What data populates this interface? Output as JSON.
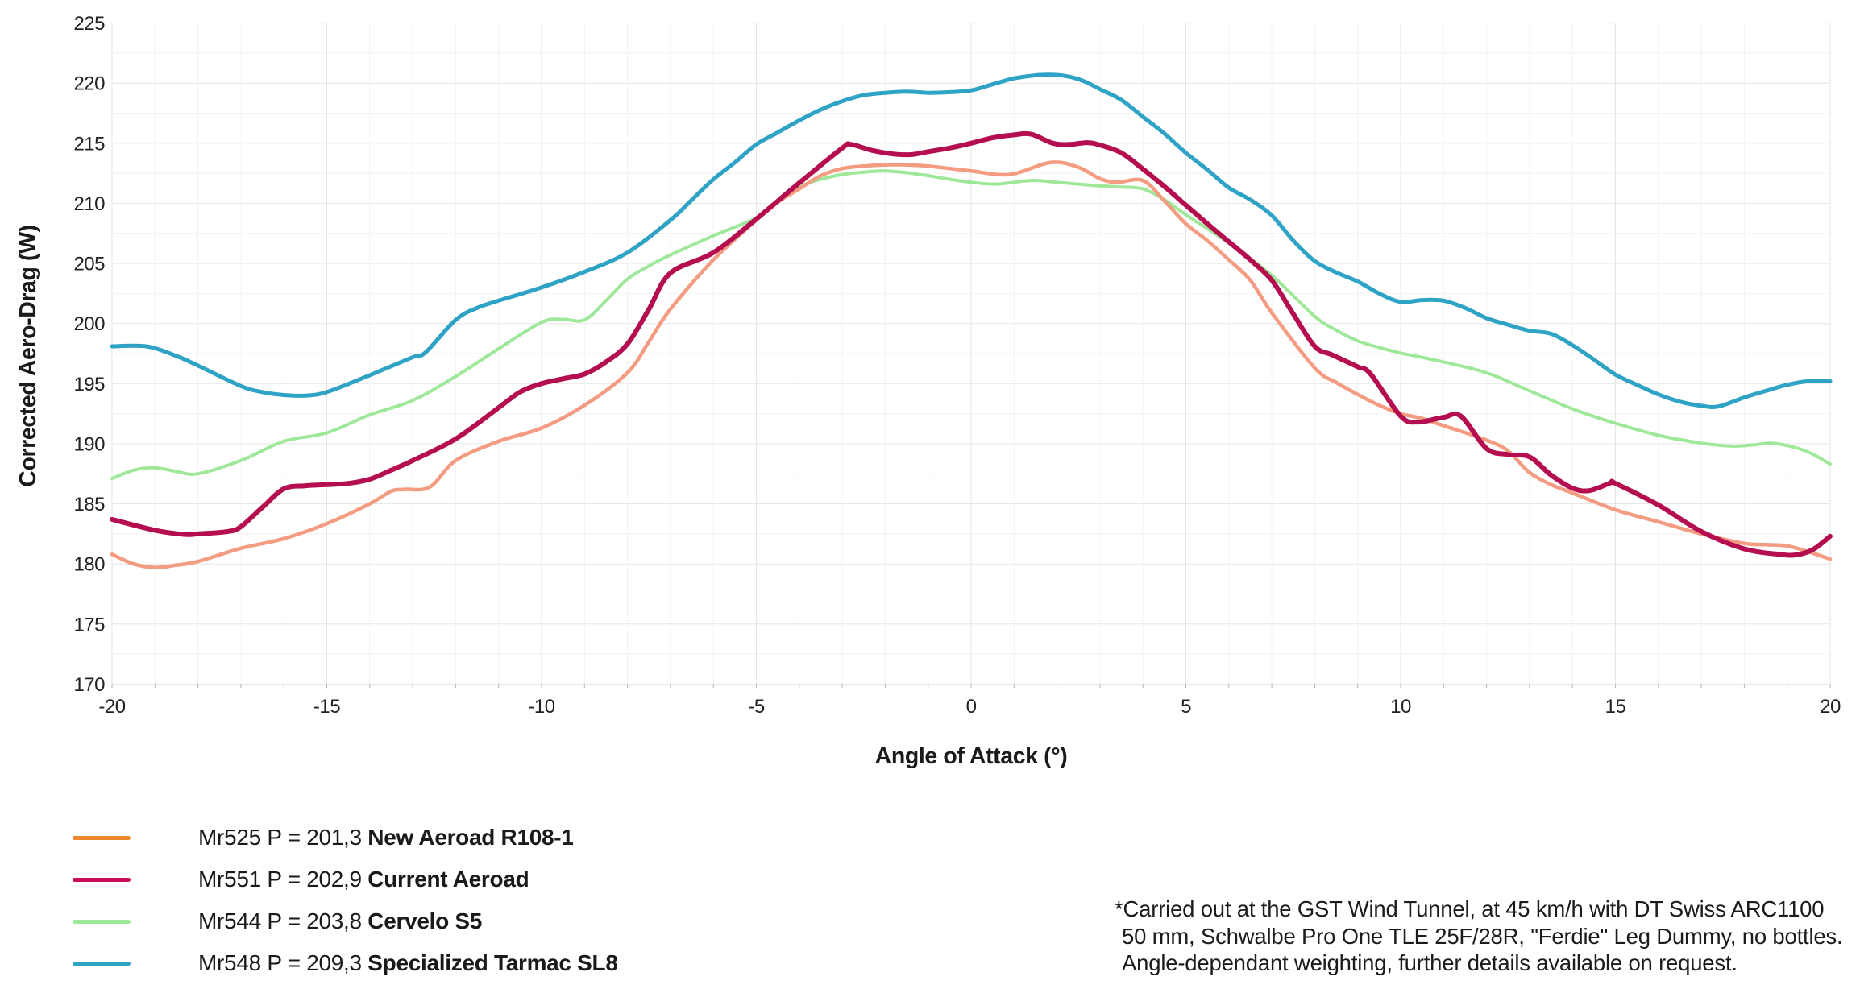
{
  "chart_data": {
    "type": "line",
    "title": "",
    "xlabel": "Angle of Attack (°)",
    "ylabel": "Corrected Aero-Drag (W)",
    "xlim": [
      -20,
      20
    ],
    "ylim": [
      170,
      225
    ],
    "x_ticks": [
      -20,
      -15,
      -10,
      -5,
      0,
      5,
      10,
      15,
      20
    ],
    "y_ticks": [
      170,
      175,
      180,
      185,
      190,
      195,
      200,
      205,
      210,
      215,
      220,
      225
    ],
    "x_minor_step": 1,
    "y_minor_step": 2.5,
    "grid": true,
    "legend_position": "bottom-left",
    "series": [
      {
        "name": "Mr525 New Aeroad R108-1",
        "code": "Mr525",
        "p_value": "201,3",
        "bike": "New Aeroad R108-1",
        "color": "#F49C82",
        "width": 4.5,
        "points": [
          [
            -20,
            180.8
          ],
          [
            -19.5,
            180
          ],
          [
            -19,
            179.7
          ],
          [
            -18.5,
            179.9
          ],
          [
            -18,
            180.2
          ],
          [
            -17,
            181.3
          ],
          [
            -16,
            182.1
          ],
          [
            -15,
            183.35
          ],
          [
            -14,
            185
          ],
          [
            -13.5,
            186.05
          ],
          [
            -13.2,
            186.2
          ],
          [
            -12.6,
            186.4
          ],
          [
            -12,
            188.6
          ],
          [
            -11,
            190.2
          ],
          [
            -10,
            191.3
          ],
          [
            -9,
            193.2
          ],
          [
            -8,
            195.9
          ],
          [
            -7.5,
            198.5
          ],
          [
            -7,
            201.2
          ],
          [
            -6,
            205.3
          ],
          [
            -5,
            208.6
          ],
          [
            -4.5,
            210.1
          ],
          [
            -4,
            211.2
          ],
          [
            -3.5,
            212.3
          ],
          [
            -3,
            212.9
          ],
          [
            -2.5,
            213.1
          ],
          [
            -2,
            213.2
          ],
          [
            -1.5,
            213.2
          ],
          [
            -1,
            213.1
          ],
          [
            -0.5,
            212.9
          ],
          [
            0,
            212.7
          ],
          [
            0.9,
            212.4
          ],
          [
            1.85,
            213.4
          ],
          [
            2.5,
            213
          ],
          [
            3,
            212.05
          ],
          [
            3.4,
            211.75
          ],
          [
            4,
            211.9
          ],
          [
            4.5,
            210.2
          ],
          [
            5,
            208.3
          ],
          [
            5.5,
            206.9
          ],
          [
            6,
            205.3
          ],
          [
            6.5,
            203.6
          ],
          [
            7,
            200.9
          ],
          [
            8,
            196.3
          ],
          [
            8.5,
            195.1
          ],
          [
            9,
            194.1
          ],
          [
            9.5,
            193.2
          ],
          [
            10,
            192.5
          ],
          [
            10.5,
            192.1
          ],
          [
            11,
            191.5
          ],
          [
            12,
            190.3
          ],
          [
            12.5,
            189.4
          ],
          [
            13,
            187.6
          ],
          [
            13.5,
            186.6
          ],
          [
            14,
            185.9
          ],
          [
            15,
            184.5
          ],
          [
            16,
            183.5
          ],
          [
            17,
            182.5
          ],
          [
            18,
            181.7
          ],
          [
            18.5,
            181.6
          ],
          [
            19,
            181.5
          ],
          [
            19.5,
            181
          ],
          [
            20,
            180.4
          ]
        ]
      },
      {
        "name": "Mr551 Current Aeroad",
        "code": "Mr551",
        "p_value": "202,9",
        "bike": "Current Aeroad",
        "color": "#B50E50",
        "width": 6,
        "points": [
          [
            -20,
            183.7
          ],
          [
            -19,
            182.8
          ],
          [
            -18.3,
            182.45
          ],
          [
            -18,
            182.5
          ],
          [
            -17.3,
            182.7
          ],
          [
            -17,
            183.1
          ],
          [
            -16.5,
            184.7
          ],
          [
            -16,
            186.25
          ],
          [
            -15.5,
            186.5
          ],
          [
            -15,
            186.6
          ],
          [
            -14.5,
            186.7
          ],
          [
            -14,
            187.05
          ],
          [
            -13.5,
            187.8
          ],
          [
            -13,
            188.6
          ],
          [
            -12,
            190.4
          ],
          [
            -11,
            193
          ],
          [
            -10.5,
            194.3
          ],
          [
            -10,
            195
          ],
          [
            -9.5,
            195.4
          ],
          [
            -9,
            195.8
          ],
          [
            -8.5,
            196.8
          ],
          [
            -8,
            198.3
          ],
          [
            -7.5,
            201.2
          ],
          [
            -7,
            204.2
          ],
          [
            -6,
            205.9
          ],
          [
            -5,
            208.7
          ],
          [
            -4,
            211.7
          ],
          [
            -3,
            214.6
          ],
          [
            -2.8,
            214.9
          ],
          [
            -2.3,
            214.4
          ],
          [
            -1.8,
            214.1
          ],
          [
            -1.4,
            214.05
          ],
          [
            -1,
            214.3
          ],
          [
            -0.5,
            214.6
          ],
          [
            0,
            215
          ],
          [
            0.5,
            215.45
          ],
          [
            1,
            215.7
          ],
          [
            1.4,
            215.75
          ],
          [
            1.9,
            215
          ],
          [
            2.3,
            214.9
          ],
          [
            2.7,
            215.05
          ],
          [
            3,
            214.85
          ],
          [
            3.5,
            214.2
          ],
          [
            4,
            212.85
          ],
          [
            4.5,
            211.4
          ],
          [
            5,
            209.85
          ],
          [
            5.5,
            208.3
          ],
          [
            6,
            206.8
          ],
          [
            6.5,
            205.3
          ],
          [
            7,
            203.6
          ],
          [
            7.5,
            200.8
          ],
          [
            8,
            198.1
          ],
          [
            8.4,
            197.4
          ],
          [
            9,
            196.4
          ],
          [
            9.3,
            195.8
          ],
          [
            10,
            192.3
          ],
          [
            10.4,
            191.8
          ],
          [
            11,
            192.2
          ],
          [
            11.4,
            192.3
          ],
          [
            12,
            189.6
          ],
          [
            12.5,
            189.1
          ],
          [
            13,
            188.9
          ],
          [
            13.5,
            187.4
          ],
          [
            14,
            186.3
          ],
          [
            14.4,
            186.1
          ],
          [
            14.9,
            186.75
          ],
          [
            15,
            186.7
          ],
          [
            16,
            184.9
          ],
          [
            17,
            182.7
          ],
          [
            18,
            181.25
          ],
          [
            18.8,
            180.8
          ],
          [
            19.2,
            180.75
          ],
          [
            19.6,
            181.2
          ],
          [
            20,
            182.3
          ]
        ]
      },
      {
        "name": "Mr544 Cervelo S5",
        "code": "Mr544",
        "p_value": "203,8",
        "bike": "Cervelo S5",
        "color": "#9FE89A",
        "width": 4,
        "points": [
          [
            -20,
            187.1
          ],
          [
            -19.5,
            187.8
          ],
          [
            -19,
            188
          ],
          [
            -18.5,
            187.7
          ],
          [
            -18,
            187.5
          ],
          [
            -17,
            188.6
          ],
          [
            -16,
            190.2
          ],
          [
            -15,
            190.9
          ],
          [
            -14,
            192.4
          ],
          [
            -13,
            193.6
          ],
          [
            -12,
            195.6
          ],
          [
            -11,
            197.9
          ],
          [
            -10,
            200.1
          ],
          [
            -9.5,
            200.35
          ],
          [
            -9,
            200.3
          ],
          [
            -8.5,
            201.9
          ],
          [
            -8,
            203.7
          ],
          [
            -7.5,
            204.8
          ],
          [
            -7,
            205.7
          ],
          [
            -6,
            207.3
          ],
          [
            -5,
            208.8
          ],
          [
            -4.5,
            210.2
          ],
          [
            -4,
            211.4
          ],
          [
            -3.5,
            212
          ],
          [
            -3,
            212.4
          ],
          [
            -2.5,
            212.6
          ],
          [
            -2,
            212.7
          ],
          [
            -1.5,
            212.55
          ],
          [
            -1,
            212.3
          ],
          [
            -0.5,
            212
          ],
          [
            0,
            211.75
          ],
          [
            0.6,
            211.6
          ],
          [
            1.4,
            211.9
          ],
          [
            2,
            211.75
          ],
          [
            2.5,
            211.6
          ],
          [
            3,
            211.45
          ],
          [
            3.5,
            211.35
          ],
          [
            4,
            211.2
          ],
          [
            4.5,
            210.3
          ],
          [
            5,
            209.05
          ],
          [
            6,
            206.7
          ],
          [
            7,
            204
          ],
          [
            8,
            200.6
          ],
          [
            8.5,
            199.45
          ],
          [
            9,
            198.55
          ],
          [
            9.5,
            198
          ],
          [
            10,
            197.55
          ],
          [
            11,
            196.8
          ],
          [
            12,
            195.9
          ],
          [
            13,
            194.4
          ],
          [
            14,
            192.9
          ],
          [
            15,
            191.7
          ],
          [
            16,
            190.7
          ],
          [
            17,
            190.05
          ],
          [
            17.7,
            189.8
          ],
          [
            18.2,
            189.9
          ],
          [
            18.6,
            190.05
          ],
          [
            19,
            189.85
          ],
          [
            19.5,
            189.3
          ],
          [
            20,
            188.3
          ]
        ]
      },
      {
        "name": "Mr548 Specialized Tarmac SL8",
        "code": "Mr548",
        "p_value": "209,3",
        "bike": "Specialized Tarmac SL8",
        "color": "#2FA3C6",
        "width": 5,
        "points": [
          [
            -20,
            198.1
          ],
          [
            -19.2,
            198.1
          ],
          [
            -18.5,
            197.3
          ],
          [
            -18,
            196.5
          ],
          [
            -17,
            194.8
          ],
          [
            -16.5,
            194.3
          ],
          [
            -16,
            194.05
          ],
          [
            -15.5,
            194
          ],
          [
            -15,
            194.3
          ],
          [
            -14,
            195.7
          ],
          [
            -13,
            197.2
          ],
          [
            -12.7,
            197.6
          ],
          [
            -12,
            200.3
          ],
          [
            -11.5,
            201.3
          ],
          [
            -11,
            201.9
          ],
          [
            -10,
            203
          ],
          [
            -9,
            204.3
          ],
          [
            -8,
            205.9
          ],
          [
            -7,
            208.6
          ],
          [
            -6.5,
            210.3
          ],
          [
            -6,
            212
          ],
          [
            -5.5,
            213.4
          ],
          [
            -5,
            214.9
          ],
          [
            -4.5,
            215.9
          ],
          [
            -4,
            216.9
          ],
          [
            -3.5,
            217.8
          ],
          [
            -3,
            218.5
          ],
          [
            -2.5,
            219
          ],
          [
            -2,
            219.2
          ],
          [
            -1.5,
            219.3
          ],
          [
            -1,
            219.2
          ],
          [
            -0.5,
            219.25
          ],
          [
            0,
            219.4
          ],
          [
            0.5,
            219.9
          ],
          [
            1,
            220.4
          ],
          [
            1.5,
            220.65
          ],
          [
            1.8,
            220.7
          ],
          [
            2.2,
            220.6
          ],
          [
            2.6,
            220.2
          ],
          [
            3,
            219.5
          ],
          [
            3.5,
            218.6
          ],
          [
            4,
            217.2
          ],
          [
            4.5,
            215.8
          ],
          [
            5,
            214.2
          ],
          [
            5.5,
            212.8
          ],
          [
            6,
            211.3
          ],
          [
            6.5,
            210.3
          ],
          [
            7,
            209
          ],
          [
            7.5,
            206.9
          ],
          [
            8,
            205.2
          ],
          [
            8.5,
            204.25
          ],
          [
            9,
            203.5
          ],
          [
            9.5,
            202.5
          ],
          [
            10,
            201.8
          ],
          [
            10.5,
            201.95
          ],
          [
            11,
            201.9
          ],
          [
            11.5,
            201.3
          ],
          [
            12,
            200.45
          ],
          [
            12.5,
            199.9
          ],
          [
            13,
            199.4
          ],
          [
            13.5,
            199.15
          ],
          [
            14,
            198.2
          ],
          [
            14.5,
            197
          ],
          [
            15,
            195.75
          ],
          [
            15.5,
            194.9
          ],
          [
            16,
            194.1
          ],
          [
            16.5,
            193.5
          ],
          [
            17,
            193.15
          ],
          [
            17.4,
            193.1
          ],
          [
            18,
            193.85
          ],
          [
            18.5,
            194.4
          ],
          [
            19,
            194.9
          ],
          [
            19.5,
            195.2
          ],
          [
            20,
            195.2
          ]
        ]
      }
    ],
    "colors": {
      "grid_major": "#e6e6e6",
      "grid_minor": "#f2f2f2",
      "tick_text": "#222222",
      "axis_title_text": "#1a1a1a",
      "tick_mark": "#aeaeae"
    }
  },
  "legend": {
    "items": [
      {
        "prefix": "Mr525 P = 201,3 ",
        "bike": "New Aeroad R108-1",
        "color": "#F0862B"
      },
      {
        "prefix": "Mr551 P = 202,9 ",
        "bike": "Current Aeroad",
        "color": "#C70D55"
      },
      {
        "prefix": "Mr544 P = 203,8 ",
        "bike": "Cervelo S5",
        "color": "#9FE89A"
      },
      {
        "prefix": "Mr548 P = 209,3 ",
        "bike": "Specialized Tarmac SL8",
        "color": "#2FA3C6"
      }
    ]
  },
  "footnote": {
    "lines": [
      "*Carried out at the GST Wind Tunnel, at 45 km/h with DT Swiss ARC1100",
      "50 mm, Schwalbe Pro One TLE 25F/28R, \"Ferdie\" Leg Dummy, no bottles.",
      "Angle-dependant weighting, further details available on request."
    ]
  }
}
